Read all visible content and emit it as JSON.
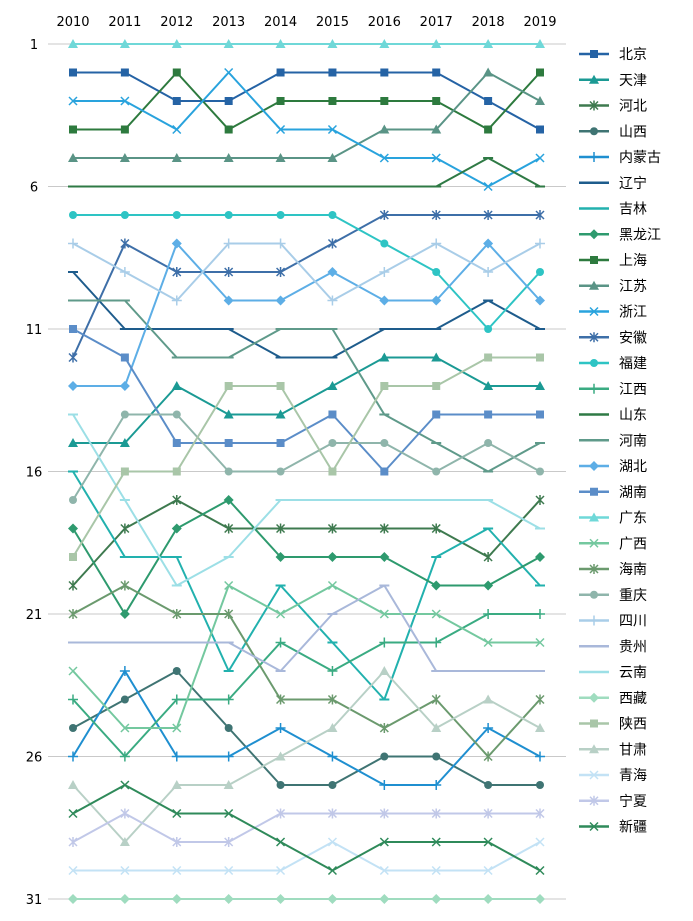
{
  "chart_data": {
    "type": "line",
    "title": "",
    "xlabel": "",
    "ylabel": "",
    "x": [
      "2010",
      "2011",
      "2012",
      "2013",
      "2014",
      "2015",
      "2016",
      "2017",
      "2018",
      "2019"
    ],
    "y_ticks": [
      "1",
      "6",
      "11",
      "16",
      "21",
      "26",
      "31"
    ],
    "ylim": [
      1,
      31
    ],
    "y_inverted": true,
    "x_axis_position": "top",
    "grid": {
      "horizontal": true,
      "vertical": false
    },
    "legend_position": "right",
    "series": [
      {
        "name": "北京",
        "color": "#2563a5",
        "marker": "square",
        "values": [
          2,
          2,
          3,
          3,
          2,
          2,
          2,
          2,
          3,
          4
        ]
      },
      {
        "name": "天津",
        "color": "#1b9a94",
        "marker": "triangle",
        "values": [
          15,
          15,
          13,
          14,
          14,
          13,
          12,
          12,
          13,
          13
        ]
      },
      {
        "name": "河北",
        "color": "#3e7a4f",
        "marker": "star",
        "values": [
          20,
          18,
          17,
          18,
          18,
          18,
          18,
          18,
          19,
          17
        ]
      },
      {
        "name": "山西",
        "color": "#3f7473",
        "marker": "circle",
        "values": [
          25,
          24,
          23,
          25,
          27,
          27,
          26,
          26,
          27,
          27
        ]
      },
      {
        "name": "内蒙古",
        "color": "#1f8fd0",
        "marker": "plus",
        "values": [
          26,
          23,
          26,
          26,
          25,
          26,
          27,
          27,
          25,
          26
        ]
      },
      {
        "name": "辽宁",
        "color": "#1e5c8c",
        "marker": "dash",
        "values": [
          9,
          11,
          11,
          11,
          12,
          12,
          11,
          11,
          10,
          11
        ]
      },
      {
        "name": "吉林",
        "color": "#22b1ae",
        "marker": "dash",
        "values": [
          16,
          19,
          19,
          23,
          20,
          22,
          24,
          19,
          18,
          20
        ]
      },
      {
        "name": "黑龙江",
        "color": "#2e9a6e",
        "marker": "diamond",
        "values": [
          18,
          21,
          18,
          17,
          19,
          19,
          19,
          20,
          20,
          19
        ]
      },
      {
        "name": "上海",
        "color": "#2d7a3e",
        "marker": "square",
        "values": [
          4,
          4,
          2,
          4,
          3,
          3,
          3,
          3,
          4,
          2
        ]
      },
      {
        "name": "江苏",
        "color": "#5a9486",
        "marker": "triangle",
        "values": [
          5,
          5,
          5,
          5,
          5,
          5,
          4,
          4,
          2,
          3
        ]
      },
      {
        "name": "浙江",
        "color": "#29a3dd",
        "marker": "x",
        "values": [
          3,
          3,
          4,
          2,
          4,
          4,
          5,
          5,
          6,
          5
        ]
      },
      {
        "name": "安徽",
        "color": "#3e6fa8",
        "marker": "star",
        "values": [
          12,
          8,
          9,
          9,
          9,
          8,
          7,
          7,
          7,
          7
        ]
      },
      {
        "name": "福建",
        "color": "#2ec4c4",
        "marker": "circle",
        "values": [
          7,
          7,
          7,
          7,
          7,
          7,
          8,
          9,
          11,
          9
        ]
      },
      {
        "name": "江西",
        "color": "#3aab82",
        "marker": "plus",
        "values": [
          24,
          26,
          24,
          24,
          22,
          23,
          22,
          22,
          21,
          21
        ]
      },
      {
        "name": "山东",
        "color": "#2f7a45",
        "marker": "dash",
        "values": [
          6,
          6,
          6,
          6,
          6,
          6,
          6,
          6,
          5,
          6
        ]
      },
      {
        "name": "河南",
        "color": "#5f9a8a",
        "marker": "dash",
        "values": [
          10,
          10,
          12,
          12,
          11,
          11,
          14,
          15,
          16,
          15
        ]
      },
      {
        "name": "湖北",
        "color": "#5daee6",
        "marker": "diamond",
        "values": [
          13,
          13,
          8,
          10,
          10,
          9,
          10,
          10,
          8,
          10
        ]
      },
      {
        "name": "湖南",
        "color": "#5b8dc8",
        "marker": "square",
        "values": [
          11,
          12,
          15,
          15,
          15,
          14,
          16,
          14,
          14,
          14
        ]
      },
      {
        "name": "广东",
        "color": "#6fd8d8",
        "marker": "triangle",
        "values": [
          1,
          1,
          1,
          1,
          1,
          1,
          1,
          1,
          1,
          1
        ]
      },
      {
        "name": "广西",
        "color": "#74c89f",
        "marker": "x",
        "values": [
          23,
          25,
          25,
          20,
          21,
          20,
          21,
          21,
          22,
          22
        ]
      },
      {
        "name": "海南",
        "color": "#6b9a6e",
        "marker": "star",
        "values": [
          21,
          20,
          21,
          21,
          24,
          24,
          25,
          24,
          26,
          24
        ]
      },
      {
        "name": "重庆",
        "color": "#8fb5ab",
        "marker": "circle",
        "values": [
          17,
          14,
          14,
          16,
          16,
          15,
          15,
          16,
          15,
          16
        ]
      },
      {
        "name": "四川",
        "color": "#a9cde8",
        "marker": "plus",
        "values": [
          8,
          9,
          10,
          8,
          8,
          10,
          9,
          8,
          9,
          8
        ]
      },
      {
        "name": "贵州",
        "color": "#a9b8da",
        "marker": "dash",
        "values": [
          22,
          22,
          22,
          22,
          23,
          21,
          20,
          23,
          23,
          23
        ]
      },
      {
        "name": "云南",
        "color": "#9cdfe6",
        "marker": "dash",
        "values": [
          14,
          17,
          20,
          19,
          17,
          17,
          17,
          17,
          17,
          18
        ]
      },
      {
        "name": "西藏",
        "color": "#9fdcbf",
        "marker": "diamond",
        "values": [
          31,
          31,
          31,
          31,
          31,
          31,
          31,
          31,
          31,
          31
        ]
      },
      {
        "name": "陕西",
        "color": "#a9c6a8",
        "marker": "square",
        "values": [
          19,
          16,
          16,
          13,
          13,
          16,
          13,
          13,
          12,
          12
        ]
      },
      {
        "name": "甘肃",
        "color": "#b8d0c6",
        "marker": "triangle",
        "values": [
          27,
          29,
          27,
          27,
          26,
          25,
          23,
          25,
          24,
          25
        ]
      },
      {
        "name": "青海",
        "color": "#c3e2f5",
        "marker": "x",
        "values": [
          30,
          30,
          30,
          30,
          30,
          29,
          30,
          30,
          30,
          29
        ]
      },
      {
        "name": "宁夏",
        "color": "#c1c8e8",
        "marker": "star",
        "values": [
          29,
          28,
          29,
          29,
          28,
          28,
          28,
          28,
          28,
          28
        ]
      },
      {
        "name": "新疆",
        "color": "#2f8a5a",
        "marker": "x",
        "values": [
          28,
          27,
          28,
          28,
          29,
          30,
          29,
          29,
          29,
          30
        ]
      }
    ]
  }
}
